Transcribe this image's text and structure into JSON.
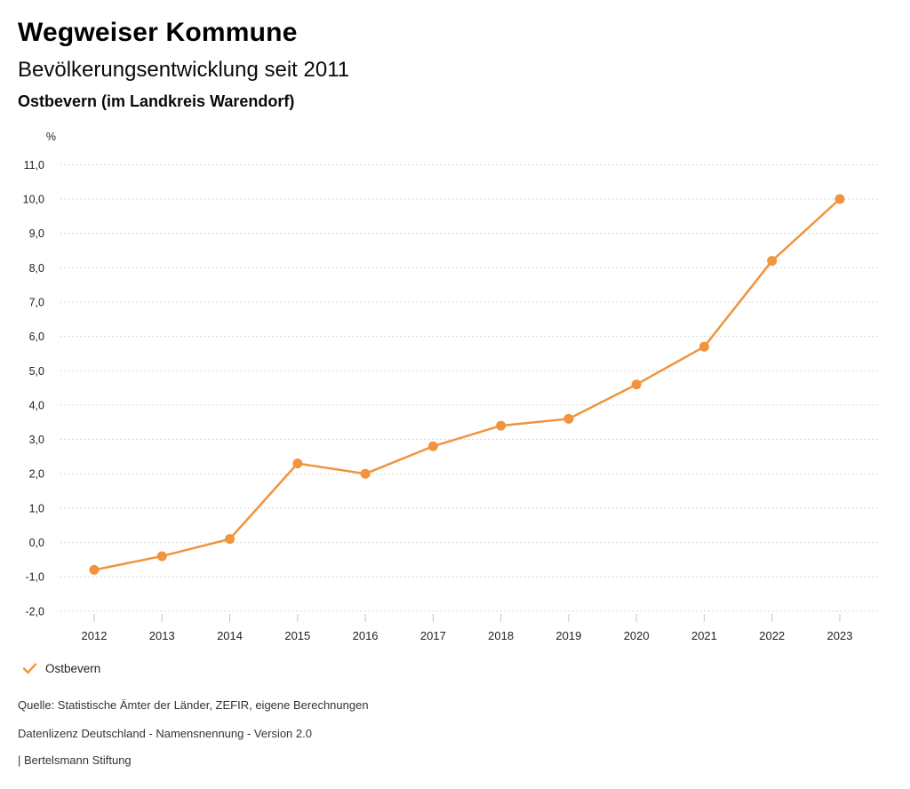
{
  "header": {
    "title": "Wegweiser Kommune",
    "subtitle": "Bevölkerungsentwicklung seit 2011",
    "region": "Ostbevern (im Landkreis Warendorf)"
  },
  "chart_data": {
    "type": "line",
    "title": "Bevölkerungsentwicklung seit 2011",
    "categories": [
      "2012",
      "2013",
      "2014",
      "2015",
      "2016",
      "2017",
      "2018",
      "2019",
      "2020",
      "2021",
      "2022",
      "2023"
    ],
    "series": [
      {
        "name": "Ostbevern",
        "values": [
          -0.8,
          -0.4,
          0.1,
          2.3,
          2.0,
          2.8,
          3.4,
          3.6,
          4.6,
          5.7,
          8.2,
          10.0
        ],
        "color": "#F0943E"
      }
    ],
    "unit_label": "%",
    "ylim": [
      -2.0,
      11.0
    ],
    "y_step": 1.0,
    "decimal_separator": ",",
    "grid": "horizontal-dotted",
    "legend_position": "bottom-left",
    "colors": {
      "line": "#F0943E",
      "gridline": "#c9c9c9",
      "tick": "#c6c6c6",
      "axis_text": "#222222"
    }
  },
  "legend": {
    "items": [
      {
        "label": "Ostbevern",
        "marker": "check-icon",
        "color": "#F0943E"
      }
    ]
  },
  "footer": {
    "source": "Quelle: Statistische Ämter der Länder, ZEFIR, eigene Berechnungen",
    "license": "Datenlizenz Deutschland - Namensnennung - Version 2.0",
    "publisher": "| Bertelsmann Stiftung"
  }
}
